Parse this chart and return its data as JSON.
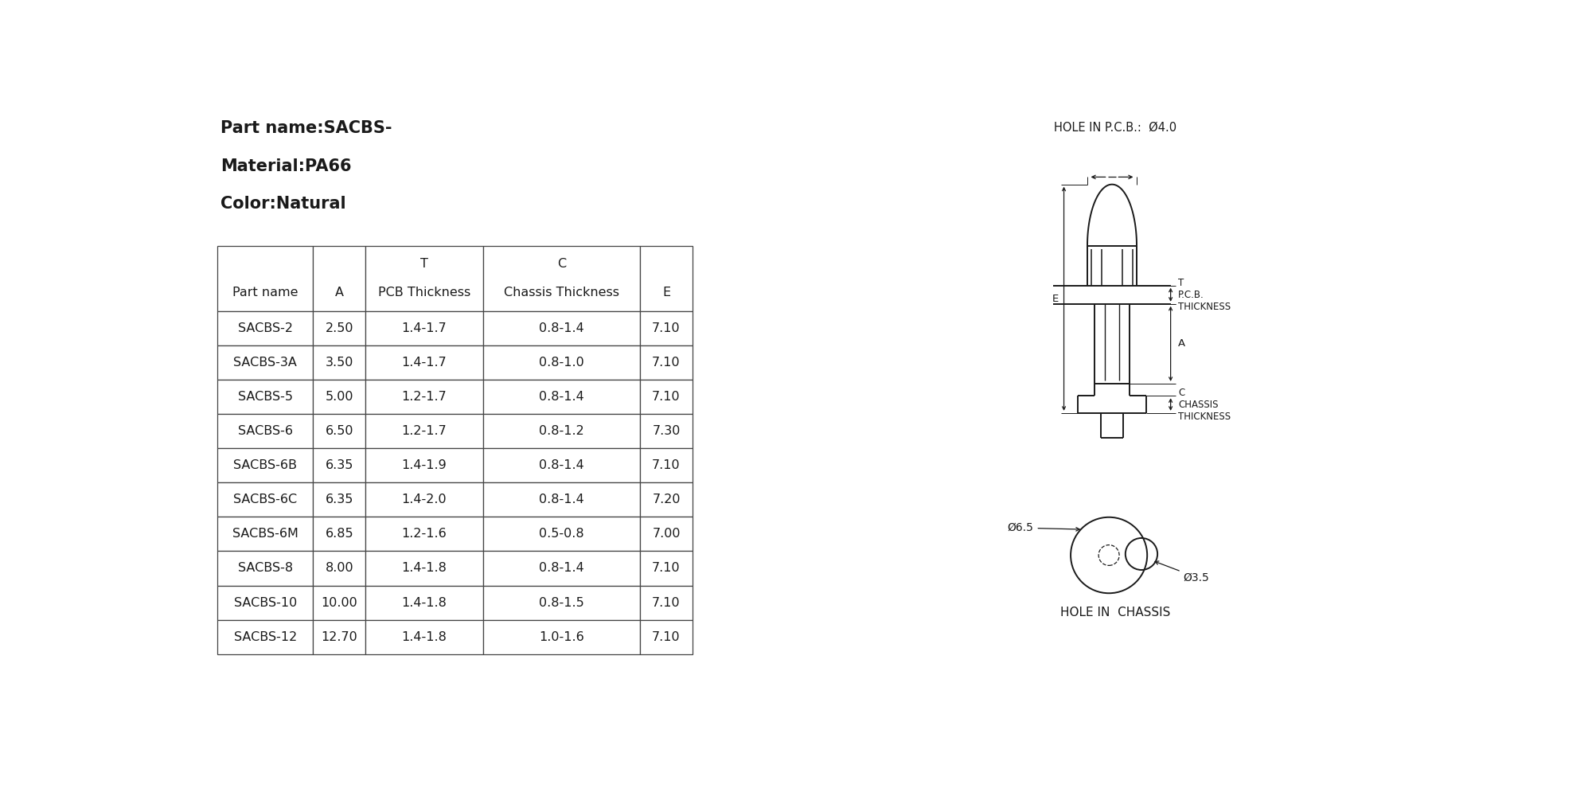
{
  "title_lines": [
    "Part name:SACBS-",
    "Material:PA66",
    "Color:Natural"
  ],
  "table_data": [
    [
      "SACBS-2",
      "2.50",
      "1.4-1.7",
      "0.8-1.4",
      "7.10"
    ],
    [
      "SACBS-3A",
      "3.50",
      "1.4-1.7",
      "0.8-1.0",
      "7.10"
    ],
    [
      "SACBS-5",
      "5.00",
      "1.2-1.7",
      "0.8-1.4",
      "7.10"
    ],
    [
      "SACBS-6",
      "6.50",
      "1.2-1.7",
      "0.8-1.2",
      "7.30"
    ],
    [
      "SACBS-6B",
      "6.35",
      "1.4-1.9",
      "0.8-1.4",
      "7.10"
    ],
    [
      "SACBS-6C",
      "6.35",
      "1.4-2.0",
      "0.8-1.4",
      "7.20"
    ],
    [
      "SACBS-6M",
      "6.85",
      "1.2-1.6",
      "0.5-0.8",
      "7.00"
    ],
    [
      "SACBS-8",
      "8.00",
      "1.4-1.8",
      "0.8-1.4",
      "7.10"
    ],
    [
      "SACBS-10",
      "10.00",
      "1.4-1.8",
      "0.8-1.5",
      "7.10"
    ],
    [
      "SACBS-12",
      "12.70",
      "1.4-1.8",
      "1.0-1.6",
      "7.10"
    ]
  ],
  "hole_pcb_label": "HOLE IN P.C.B.:  Ø4.0",
  "hole_chassis_label": "HOLE IN  CHASSIS",
  "dim_phi65": "Ø6.5",
  "dim_phi35": "Ø3.5",
  "bg_color": "#ffffff",
  "line_color": "#1a1a1a",
  "text_color": "#1a1a1a",
  "dim_color": "#1a1a1a"
}
